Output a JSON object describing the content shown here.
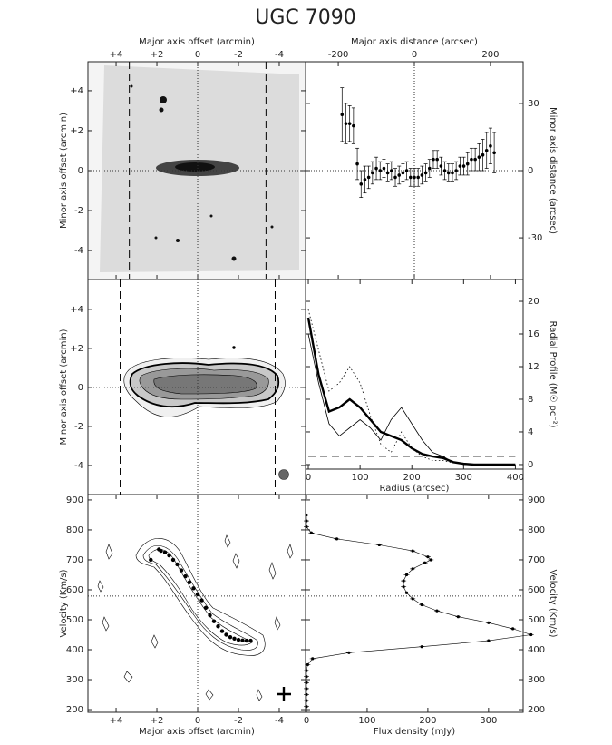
{
  "title": "UGC 7090",
  "chart_data": [
    {
      "type": "image",
      "xlabel": "Major axis offset (arcmin)",
      "ylabel": "Minor axis offset (arcmin)",
      "x_axis": "top",
      "y_axis": "left",
      "xlim": [
        5.38,
        -5.29
      ],
      "ylim": [
        -5.45,
        5.45
      ],
      "xticks": [
        {
          "value": 4,
          "label": "+4"
        },
        {
          "value": 2,
          "label": "+2"
        },
        0,
        -2,
        -4
      ],
      "yticks": [
        {
          "value": 4,
          "label": "+4"
        },
        {
          "value": 2,
          "label": "+2"
        },
        0,
        -2,
        -4
      ],
      "ref_x": 0,
      "ref_y": 0,
      "dashed_x": [
        3.35,
        -3.35
      ]
    },
    {
      "type": "errorbar",
      "xlabel": "Major axis distance (arcsec)",
      "ylabel": "Minor axis distance (arcsec)",
      "x_axis": "top",
      "y_axis": "right",
      "xlim": [
        -286,
        286
      ],
      "ylim": [
        -48.6,
        48.6
      ],
      "xticks": [
        -200,
        0,
        200
      ],
      "yticks": [
        -30,
        0,
        30
      ],
      "ref_x": 0,
      "ref_y": 0,
      "color": "#000000",
      "x": [
        -190,
        -180,
        -170,
        -160,
        -150,
        -140,
        -130,
        -120,
        -110,
        -100,
        -90,
        -80,
        -70,
        -60,
        -50,
        -40,
        -30,
        -20,
        -10,
        0,
        10,
        20,
        30,
        40,
        50,
        60,
        70,
        80,
        90,
        100,
        110,
        120,
        130,
        140,
        150,
        160,
        170,
        180,
        190,
        200,
        210
      ],
      "values": [
        25,
        21,
        21,
        20,
        3,
        -6,
        -4,
        -3,
        -1,
        1,
        0,
        1,
        -1,
        0,
        -3,
        -2,
        -1,
        0,
        -3,
        -3,
        -3,
        -2,
        -1,
        1,
        5,
        5,
        2,
        0,
        -1,
        -1,
        0,
        2,
        2,
        3,
        5,
        5,
        6,
        7,
        9,
        11,
        8
      ],
      "errors": [
        12,
        9,
        8,
        8,
        7,
        6,
        6,
        5,
        5,
        5,
        4,
        4,
        4,
        4,
        4,
        4,
        4,
        4,
        4,
        4,
        4,
        4,
        4,
        4,
        4,
        4,
        4,
        4,
        4,
        4,
        4,
        4,
        4,
        5,
        5,
        5,
        6,
        7,
        8,
        8,
        9
      ]
    },
    {
      "type": "contour",
      "ylabel": "Minor axis offset (arcmin)",
      "y_axis": "left",
      "xlim": [
        5.38,
        -5.29
      ],
      "ylim": [
        -5.49,
        5.53
      ],
      "yticks": [
        {
          "value": 4,
          "label": "+4"
        },
        {
          "value": 2,
          "label": "+2"
        },
        0,
        -2,
        -4
      ],
      "ref_x": 0,
      "ref_y": 0,
      "dashed_x": [
        3.8,
        -3.8
      ]
    },
    {
      "type": "line",
      "xlabel": "Radius (arcsec)",
      "ylabel": "Radial Profile (M☉ pc⁻²)",
      "x_axis": "bottom",
      "y_axis": "right",
      "xlim": [
        -5.3,
        415
      ],
      "ylim": [
        -0.56,
        22.67
      ],
      "xticks": [
        0,
        100,
        200,
        300,
        400
      ],
      "yticks": [
        0,
        4,
        8,
        12,
        16,
        20
      ],
      "x": [
        0,
        20,
        40,
        60,
        80,
        100,
        120,
        140,
        160,
        180,
        200,
        220,
        240,
        260,
        280,
        300,
        320,
        340,
        360,
        380,
        400
      ],
      "series": [
        {
          "color": "#000000",
          "line_width": 2.4,
          "line_style": "solid",
          "values": [
            18,
            11,
            6.5,
            7,
            8,
            7,
            5.5,
            4,
            3.5,
            3,
            2,
            1.3,
            1,
            0.8,
            0.3,
            0.1,
            0,
            0,
            0,
            0,
            0
          ]
        },
        {
          "color": "#000000",
          "line_width": 0.8,
          "line_style": "solid",
          "values": [
            16,
            10,
            5,
            3.5,
            4.5,
            5.5,
            4.5,
            3,
            5.5,
            7,
            5,
            3,
            1.5,
            1,
            0.3,
            0,
            0,
            0,
            0,
            0,
            0
          ]
        },
        {
          "color": "#000000",
          "line_width": 0.8,
          "line_style": "dotted",
          "values": [
            19,
            14,
            9,
            10,
            12,
            10,
            6,
            2.5,
            1.5,
            4,
            2,
            1,
            0.5,
            0.5,
            0.2,
            null,
            null,
            null,
            null,
            null,
            null
          ]
        },
        {
          "color": "#000000",
          "line_width": 0.8,
          "line_style": "dashed",
          "values": [
            1,
            1,
            1,
            1,
            1,
            1,
            1,
            1,
            1,
            1,
            1,
            1,
            1,
            1,
            1,
            1,
            1,
            1,
            1,
            1,
            1
          ]
        }
      ]
    },
    {
      "type": "pv",
      "xlabel": "Major axis offset (arcmin)",
      "ylabel": "Velocity (Km/s)",
      "x_axis": "bottom",
      "y_axis": "left",
      "xlim": [
        5.38,
        -5.29
      ],
      "ylim": [
        191,
        918
      ],
      "xticks": [
        {
          "value": 4,
          "label": "+4"
        },
        {
          "value": 2,
          "label": "+2"
        },
        0,
        -2,
        -4
      ],
      "yticks": [
        900,
        800,
        700,
        600,
        500,
        400,
        300,
        200
      ],
      "ref_x": 0,
      "ref_y": 579,
      "color": "#000000",
      "x": [
        2.3,
        1.9,
        1.8,
        1.6,
        1.4,
        1.2,
        1.0,
        0.8,
        0.6,
        0.4,
        0.2,
        0,
        -0.2,
        -0.4,
        -0.6,
        -0.8,
        -1.0,
        -1.2,
        -1.4,
        -1.6,
        -1.8,
        -2.0,
        -2.2,
        -2.4,
        -2.6
      ],
      "values": [
        700,
        735,
        730,
        725,
        715,
        700,
        685,
        665,
        645,
        625,
        605,
        585,
        565,
        540,
        515,
        495,
        478,
        462,
        450,
        442,
        437,
        433,
        431,
        430,
        430
      ]
    },
    {
      "type": "spectrum",
      "xlabel": "Flux density (mJy)",
      "ylabel": "Velocity (Km/s)",
      "x_axis": "bottom",
      "y_axis": "right",
      "xlim": [
        -1.5,
        357
      ],
      "ylim": [
        191,
        918
      ],
      "xticks": [
        0,
        100,
        200,
        300
      ],
      "yticks": [
        900,
        800,
        700,
        600,
        500,
        400,
        300,
        200
      ],
      "ref_y": 579,
      "color": "#000000",
      "x": [
        0,
        0,
        0,
        8,
        50,
        120,
        175,
        200,
        205,
        195,
        175,
        165,
        160,
        160,
        165,
        175,
        190,
        215,
        250,
        300,
        340,
        370,
        300,
        190,
        70,
        10,
        2,
        0,
        0,
        0,
        0,
        0,
        0,
        0
      ],
      "values": [
        850,
        830,
        810,
        790,
        770,
        750,
        730,
        710,
        700,
        690,
        670,
        650,
        630,
        610,
        590,
        570,
        550,
        530,
        510,
        490,
        470,
        450,
        430,
        410,
        390,
        370,
        350,
        330,
        310,
        290,
        270,
        250,
        230,
        210
      ]
    }
  ]
}
